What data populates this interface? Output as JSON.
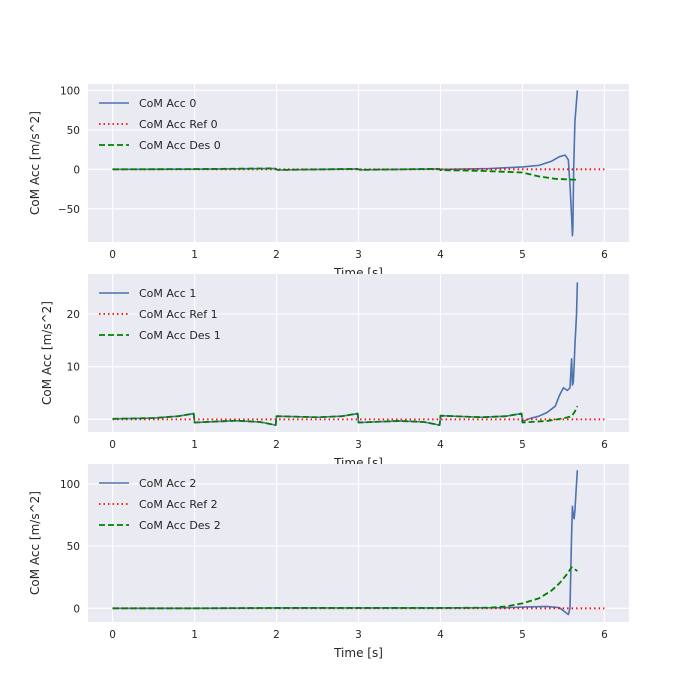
{
  "chart_data": [
    {
      "type": "line",
      "xlabel": "Time [s]",
      "ylabel": "CoM Acc [m/s^2]",
      "xlim": [
        -0.3,
        6.3
      ],
      "ylim": [
        -92,
        108
      ],
      "xticks": [
        0,
        1,
        2,
        3,
        4,
        5,
        6
      ],
      "yticks": [
        -50,
        0,
        50,
        100
      ],
      "grid": true,
      "legend_position": "upper left",
      "series": [
        {
          "name": "CoM Acc 0",
          "color": "#4C72B0",
          "style": "solid",
          "x": [
            0,
            1.0,
            1.98,
            2.0,
            2.02,
            2.98,
            3.0,
            3.02,
            3.98,
            4.0,
            4.02,
            4.6,
            5.0,
            5.2,
            5.35,
            5.45,
            5.52,
            5.56,
            5.58,
            5.6,
            5.61,
            5.615,
            5.625,
            5.64,
            5.67
          ],
          "y": [
            0,
            0.2,
            1.0,
            0,
            -0.8,
            0.5,
            0,
            -0.6,
            0.5,
            0,
            -0.2,
            1.0,
            3.0,
            5.0,
            10.0,
            16.0,
            18.0,
            12.0,
            -20.0,
            -60.0,
            -84.0,
            -75.0,
            0,
            60.0,
            100.0
          ]
        },
        {
          "name": "CoM Acc Ref 0",
          "color": "#ff0000",
          "style": "dotted",
          "x": [
            0,
            6.0
          ],
          "y": [
            0,
            0
          ]
        },
        {
          "name": "CoM Acc Des 0",
          "color": "#008000",
          "style": "dashed",
          "x": [
            0,
            1.0,
            1.98,
            2.0,
            2.02,
            2.98,
            3.0,
            3.02,
            3.98,
            4.0,
            4.5,
            5.0,
            5.2,
            5.4,
            5.6,
            5.67
          ],
          "y": [
            0,
            0.3,
            1.2,
            0,
            -0.8,
            0.6,
            0,
            -0.7,
            0.6,
            -1.0,
            -2.0,
            -4.0,
            -9.0,
            -12.0,
            -13.0,
            -13.0
          ]
        }
      ]
    },
    {
      "type": "line",
      "xlabel": "Time [s]",
      "ylabel": "CoM Acc [m/s^2]",
      "xlim": [
        -0.3,
        6.3
      ],
      "ylim": [
        -2.4,
        27.6
      ],
      "xticks": [
        0,
        1,
        2,
        3,
        4,
        5,
        6
      ],
      "yticks": [
        0,
        10,
        20
      ],
      "grid": true,
      "legend_position": "upper left",
      "series": [
        {
          "name": "CoM Acc 1",
          "color": "#4C72B0",
          "style": "solid",
          "x": [
            0,
            0.5,
            0.8,
            0.99,
            1.0,
            1.5,
            1.8,
            1.99,
            2.0,
            2.5,
            2.8,
            2.99,
            3.0,
            3.5,
            3.8,
            3.99,
            4.0,
            4.5,
            4.8,
            4.99,
            5.0,
            5.1,
            5.2,
            5.3,
            5.4,
            5.45,
            5.5,
            5.55,
            5.58,
            5.6,
            5.61,
            5.62,
            5.63,
            5.64,
            5.66,
            5.67
          ],
          "y": [
            0.1,
            0.25,
            0.6,
            1.1,
            -0.6,
            -0.25,
            -0.5,
            -1.1,
            0.6,
            0.4,
            0.6,
            1.1,
            -0.6,
            -0.3,
            -0.5,
            -1.1,
            0.7,
            0.4,
            0.6,
            1.1,
            -0.4,
            0.2,
            0.6,
            1.3,
            2.5,
            4.5,
            6.0,
            5.5,
            6.0,
            11.5,
            6.5,
            7.0,
            10.0,
            14.0,
            20.0,
            26.0
          ]
        },
        {
          "name": "CoM Acc Ref 1",
          "color": "#ff0000",
          "style": "dotted",
          "x": [
            0,
            6.0
          ],
          "y": [
            0,
            0
          ]
        },
        {
          "name": "CoM Acc Des 1",
          "color": "#008000",
          "style": "dashed",
          "x": [
            0,
            0.5,
            0.8,
            0.99,
            1.0,
            1.5,
            1.8,
            1.99,
            2.0,
            2.5,
            2.8,
            2.99,
            3.0,
            3.5,
            3.8,
            3.99,
            4.0,
            4.5,
            4.8,
            4.99,
            5.0,
            5.3,
            5.5,
            5.6,
            5.64,
            5.67
          ],
          "y": [
            0.1,
            0.25,
            0.6,
            1.1,
            -0.6,
            -0.25,
            -0.5,
            -1.1,
            0.6,
            0.4,
            0.6,
            1.1,
            -0.6,
            -0.3,
            -0.5,
            -1.1,
            0.7,
            0.4,
            0.6,
            1.1,
            -0.6,
            -0.3,
            0.2,
            0.6,
            1.5,
            2.5
          ]
        }
      ]
    },
    {
      "type": "line",
      "xlabel": "Time [s]",
      "ylabel": "CoM Acc [m/s^2]",
      "xlim": [
        -0.3,
        6.3
      ],
      "ylim": [
        -11,
        116
      ],
      "xticks": [
        0,
        1,
        2,
        3,
        4,
        5,
        6
      ],
      "yticks": [
        0,
        50,
        100
      ],
      "grid": true,
      "legend_position": "upper left",
      "series": [
        {
          "name": "CoM Acc 2",
          "color": "#4C72B0",
          "style": "solid",
          "x": [
            0,
            1.0,
            2.0,
            3.0,
            4.0,
            4.8,
            5.0,
            5.3,
            5.45,
            5.52,
            5.56,
            5.58,
            5.6,
            5.61,
            5.615,
            5.63,
            5.64,
            5.655,
            5.67
          ],
          "y": [
            0,
            0,
            0.3,
            0.3,
            0.3,
            0.5,
            1.0,
            1.5,
            0.5,
            -3.0,
            -5.0,
            0,
            60.0,
            82.0,
            78.0,
            72.0,
            78.0,
            95.0,
            111.0
          ]
        },
        {
          "name": "CoM Acc Ref 2",
          "color": "#ff0000",
          "style": "dotted",
          "x": [
            0,
            6.0
          ],
          "y": [
            0,
            0
          ]
        },
        {
          "name": "CoM Acc Des 2",
          "color": "#008000",
          "style": "dashed",
          "x": [
            0,
            1.0,
            2.0,
            3.0,
            4.0,
            4.6,
            4.8,
            5.0,
            5.2,
            5.35,
            5.45,
            5.55,
            5.6,
            5.67
          ],
          "y": [
            0,
            0,
            0.3,
            0.3,
            0.3,
            0.5,
            1.5,
            4.0,
            8.0,
            14.0,
            20.0,
            28.0,
            33.0,
            30.0
          ]
        }
      ]
    }
  ]
}
